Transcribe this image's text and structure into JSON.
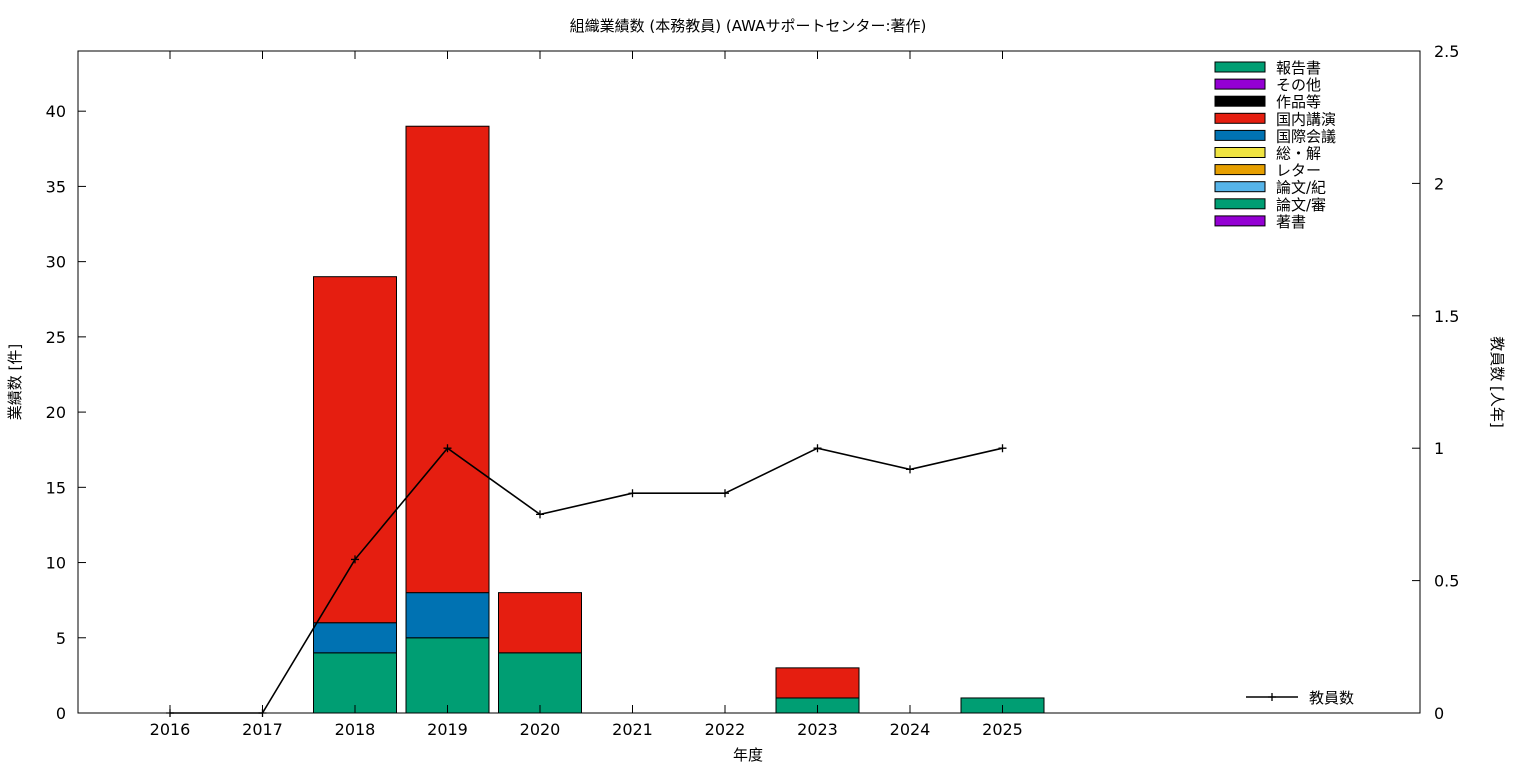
{
  "chart_data": {
    "type": "bar",
    "title": "組織業績数 (本務教員) (AWAサポートセンター:著作)",
    "xlabel": "年度",
    "ylabel": "業績数 [件]",
    "y2label": "教員数 [人年]",
    "categories": [
      "2016",
      "2017",
      "2018",
      "2019",
      "2020",
      "2021",
      "2022",
      "2023",
      "2024",
      "2025"
    ],
    "ylim": [
      0,
      44
    ],
    "yticks": [
      0,
      5,
      10,
      15,
      20,
      25,
      30,
      35,
      40
    ],
    "y2lim": [
      0,
      2.5
    ],
    "y2ticks": [
      0,
      0.5,
      1,
      1.5,
      2,
      2.5
    ],
    "y2tick_labels": [
      "0",
      "0.5",
      "1",
      "1.5",
      "2",
      "2.5"
    ],
    "grid": false,
    "legend_position": "top-right",
    "legend": [
      {
        "name": "報告書",
        "color": "#009e73"
      },
      {
        "name": "その他",
        "color": "#9400d3"
      },
      {
        "name": "作品等",
        "color": "#000000"
      },
      {
        "name": "国内講演",
        "color": "#e51e10"
      },
      {
        "name": "国際会議",
        "color": "#0072b2"
      },
      {
        "name": "総・解",
        "color": "#f0e442"
      },
      {
        "name": "レター",
        "color": "#e69f00"
      },
      {
        "name": "論文/紀",
        "color": "#56b4e9"
      },
      {
        "name": "論文/審",
        "color": "#009e73"
      },
      {
        "name": "著書",
        "color": "#9400d3"
      }
    ],
    "series": [
      {
        "name": "論文/審",
        "color": "#009e73",
        "values": [
          0,
          0,
          4,
          5,
          4,
          0,
          0,
          1,
          0,
          1
        ]
      },
      {
        "name": "国際会議",
        "color": "#0072b2",
        "values": [
          0,
          0,
          2,
          3,
          0,
          0,
          0,
          0,
          0,
          0
        ]
      },
      {
        "name": "国内講演",
        "color": "#e51e10",
        "values": [
          0,
          0,
          23,
          31,
          4,
          0,
          0,
          2,
          0,
          0
        ]
      }
    ],
    "line_series": {
      "name": "教員数",
      "axis": "y2",
      "color": "#000000",
      "values": [
        0,
        0,
        0.58,
        1.0,
        0.75,
        0.83,
        0.83,
        1.0,
        0.92,
        1.0
      ]
    }
  }
}
